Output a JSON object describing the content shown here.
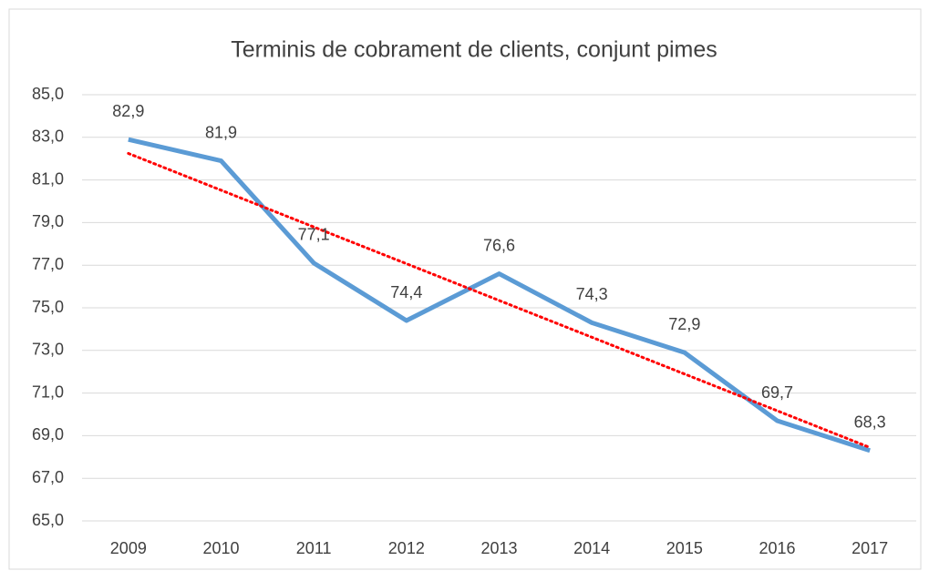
{
  "chart_data": {
    "type": "line",
    "title": "Terminis de cobrament de clients, conjunt pimes",
    "categories": [
      "2009",
      "2010",
      "2011",
      "2012",
      "2013",
      "2014",
      "2015",
      "2016",
      "2017"
    ],
    "series": [
      {
        "name": "Terminis de cobrament de clients, conjunt pimes",
        "color": "#5b9bd5",
        "values": [
          82.9,
          81.9,
          77.1,
          74.4,
          76.6,
          74.3,
          72.9,
          69.7,
          68.3
        ],
        "value_labels": [
          "82,9",
          "81,9",
          "77,1",
          "74,4",
          "76,6",
          "74,3",
          "72,9",
          "69,7",
          "68,3"
        ]
      }
    ],
    "ylim": [
      65,
      85
    ],
    "yticks": [
      {
        "value": 65,
        "label": "65,0"
      },
      {
        "value": 67,
        "label": "67,0"
      },
      {
        "value": 69,
        "label": "69,0"
      },
      {
        "value": 71,
        "label": "71,0"
      },
      {
        "value": 73,
        "label": "73,0"
      },
      {
        "value": 75,
        "label": "75,0"
      },
      {
        "value": 77,
        "label": "77,0"
      },
      {
        "value": 79,
        "label": "79,0"
      },
      {
        "value": 81,
        "label": "81,0"
      },
      {
        "value": 83,
        "label": "83,0"
      },
      {
        "value": 85,
        "label": "85,0"
      }
    ],
    "grid": true,
    "trendline": {
      "type": "linear",
      "color": "#ff0000"
    }
  }
}
